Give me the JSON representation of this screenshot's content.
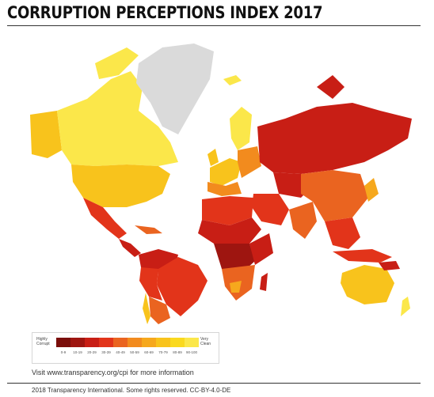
{
  "header": {
    "title": "CORRUPTION PERCEPTIONS INDEX 2017"
  },
  "legend": {
    "low_label": "Highly Corrupt",
    "high_label": "Very Clean",
    "bins": [
      {
        "range": "0-9",
        "color": "#7a0e0a"
      },
      {
        "range": "10-19",
        "color": "#9e1510"
      },
      {
        "range": "20-29",
        "color": "#c81e15"
      },
      {
        "range": "30-39",
        "color": "#e2341a"
      },
      {
        "range": "40-49",
        "color": "#ea6420"
      },
      {
        "range": "50-59",
        "color": "#f28b1e"
      },
      {
        "range": "60-69",
        "color": "#f6a81d"
      },
      {
        "range": "70-79",
        "color": "#f8c31c"
      },
      {
        "range": "80-89",
        "color": "#fad91e"
      },
      {
        "range": "90-100",
        "color": "#fbe74a"
      }
    ]
  },
  "footer": {
    "visit_text": "Visit www.transparency.org/cpi for more information",
    "copyright": "2018 Transparency International. Some rights reserved. CC-BY-4.0-DE"
  },
  "colors": {
    "no_data": "#dadada",
    "very_clean": "#fbe74a",
    "clean": "#f8c31c",
    "mid": "#f28b1e",
    "corrupt": "#e2341a",
    "highly_corrupt": "#9e1510"
  }
}
